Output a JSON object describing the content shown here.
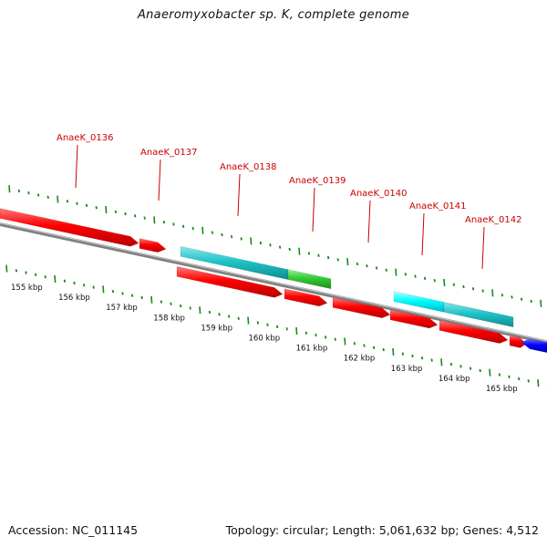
{
  "title": "Anaeromyxobacter sp. K, complete genome",
  "footer": {
    "accession": "Accession: NC_011145",
    "summary": "Topology: circular; Length: 5,061,632 bp; Genes: 4,512"
  },
  "colors": {
    "gene_red": "#ff0000",
    "gene_teal": "#1fc4c8",
    "gene_cyan": "#00ffff",
    "gene_green": "#33cc33",
    "gene_blue": "#0000ff",
    "backbone": "#808080",
    "tick_green": "#1a8a1a",
    "label_red": "#cc0000"
  },
  "axis": {
    "ticks": [
      {
        "label": "155 kbp"
      },
      {
        "label": "156 kbp"
      },
      {
        "label": "157 kbp"
      },
      {
        "label": "158 kbp"
      },
      {
        "label": "159 kbp"
      },
      {
        "label": "160 kbp"
      },
      {
        "label": "161 kbp"
      },
      {
        "label": "162 kbp"
      },
      {
        "label": "163 kbp"
      },
      {
        "label": "164 kbp"
      },
      {
        "label": "165 kbp"
      }
    ]
  },
  "gene_labels": [
    {
      "name": "AnaeK_0136"
    },
    {
      "name": "AnaeK_0137"
    },
    {
      "name": "AnaeK_0138"
    },
    {
      "name": "AnaeK_0139"
    },
    {
      "name": "AnaeK_0140"
    },
    {
      "name": "AnaeK_0141"
    },
    {
      "name": "AnaeK_0142"
    }
  ]
}
